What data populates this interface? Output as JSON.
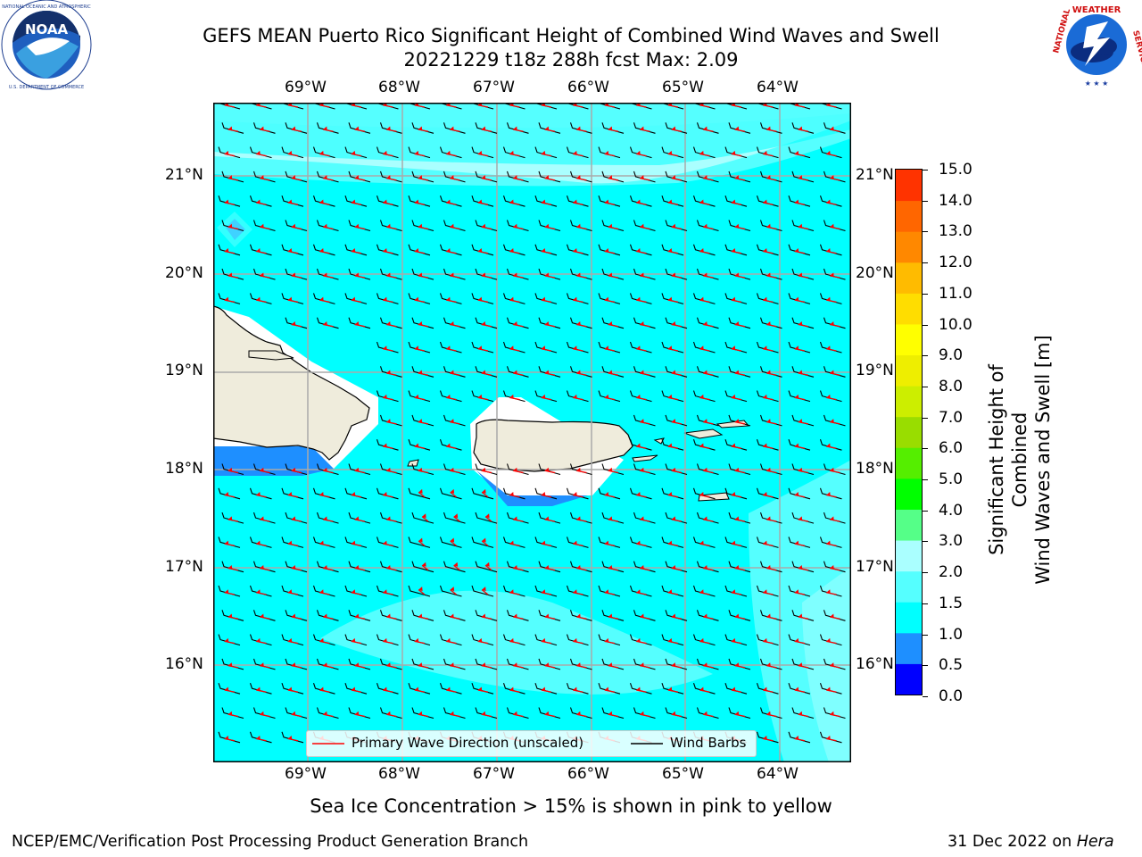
{
  "header": {
    "title_line1": "GEFS MEAN Puerto Rico Significant Height of Combined Wind Waves and Swell",
    "title_line2": "20221229 t18z 288h fcst   Max: 2.09"
  },
  "logos": {
    "left": "NOAA",
    "left_ring": "NATIONAL OCEANIC AND ATMOSPHERIC ADMINISTRATION · U.S. DEPARTMENT OF COMMERCE",
    "right_ring": "NATIONAL WEATHER SERVICE"
  },
  "map": {
    "lon_labels": [
      "69°W",
      "68°W",
      "67°W",
      "66°W",
      "65°W",
      "64°W"
    ],
    "lat_labels": [
      "21°N",
      "20°N",
      "19°N",
      "18°N",
      "17°N",
      "16°N"
    ],
    "legend": {
      "wave_label": "Primary Wave Direction (unscaled)",
      "barb_label": "Wind Barbs",
      "wave_color": "#ff0000",
      "barb_color": "#000000"
    },
    "land_color": "#efecdc",
    "ocean_color_main": "#00ffff",
    "ocean_color_light": "#55ffff",
    "ocean_color_lighter": "#aaffff",
    "shallow_color": "#1e90ff"
  },
  "colorbar": {
    "label_line1": "Significant Height of Combined",
    "label_line2": "Wind Waves and Swell [m]",
    "ticks": [
      "15.0",
      "14.0",
      "13.0",
      "12.0",
      "11.0",
      "10.0",
      "9.0",
      "8.0",
      "7.0",
      "6.0",
      "5.0",
      "4.0",
      "3.0",
      "2.0",
      "1.5",
      "1.0",
      "0.5",
      "0.0"
    ],
    "colors": [
      "#0000ff",
      "#1e8fff",
      "#00ffff",
      "#55ffff",
      "#aaffff",
      "#55ff88",
      "#00ff00",
      "#55ee00",
      "#99dd00",
      "#ccee00",
      "#eeee00",
      "#ffff00",
      "#ffdd00",
      "#ffbb00",
      "#ff8800",
      "#ff6600",
      "#ff3300",
      "#ff0000"
    ]
  },
  "footer": {
    "note": "Sea Ice Concentration > 15% is shown in pink to yellow",
    "branch": "NCEP/EMC/Verification Post Processing Product Generation Branch",
    "date": "31 Dec 2022 on ",
    "machine": "Hera"
  }
}
